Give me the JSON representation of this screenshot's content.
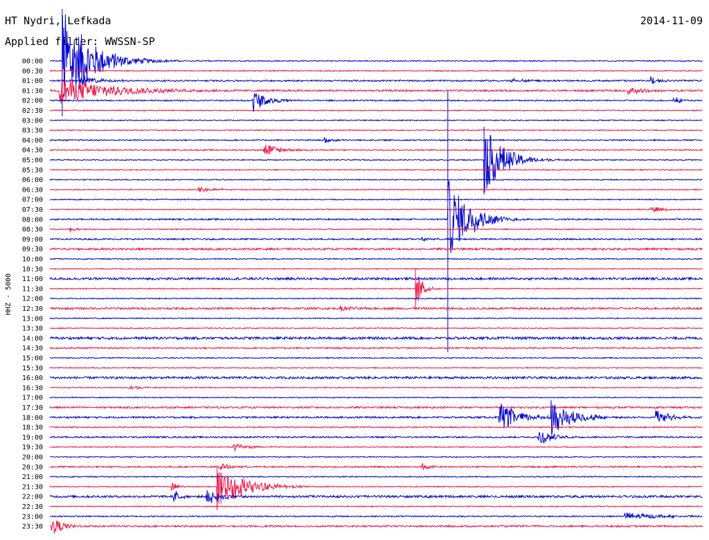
{
  "header": {
    "title": "HT Nydri, Lefkada",
    "filter": "Applied filter: WWSSN-SP",
    "date": "2014-11-09"
  },
  "chart_data": {
    "type": "line",
    "title": "HT Nydri, Lefkada",
    "subtitle": "Applied filter: WWSSN-SP",
    "date": "2014-11-09",
    "ylabel": "HHZ - 5000",
    "xlabel": "",
    "colors": [
      "#0000cc",
      "#ee1144"
    ],
    "x": [
      "00:00",
      "00:30",
      "01:00",
      "01:30",
      "02:00",
      "02:30",
      "03:00",
      "03:30",
      "04:00",
      "04:30",
      "05:00",
      "05:30",
      "06:00",
      "06:30",
      "07:00",
      "07:30",
      "08:00",
      "08:30",
      "09:00",
      "09:30",
      "10:00",
      "10:30",
      "11:00",
      "11:30",
      "12:00",
      "12:30",
      "13:00",
      "13:30",
      "14:00",
      "14:30",
      "15:00",
      "15:30",
      "16:00",
      "16:30",
      "17:00",
      "17:30",
      "18:00",
      "18:30",
      "19:00",
      "19:30",
      "20:00",
      "20:30",
      "21:00",
      "21:30",
      "22:00",
      "22:30",
      "23:00",
      "23:30"
    ],
    "row_noise": [
      0.8,
      0.8,
      1.2,
      1.4,
      1.0,
      0.8,
      0.8,
      0.8,
      1.0,
      1.0,
      0.8,
      0.8,
      0.8,
      0.8,
      0.8,
      0.8,
      1.2,
      0.8,
      1.2,
      1.6,
      0.8,
      0.8,
      1.8,
      0.8,
      0.8,
      1.6,
      0.8,
      0.8,
      2.0,
      1.2,
      0.8,
      0.8,
      1.8,
      0.8,
      0.8,
      1.4,
      1.4,
      1.0,
      1.2,
      0.8,
      0.8,
      1.2,
      0.8,
      0.8,
      1.8,
      0.8,
      1.0,
      1.4
    ],
    "events": [
      {
        "row": 0,
        "pos": 0.019,
        "amp": 80,
        "up": 75,
        "dur": 0.04
      },
      {
        "row": 2,
        "pos": 0.045,
        "amp": 8,
        "dur": 0.03
      },
      {
        "row": 3,
        "pos": 0.014,
        "amp": 20,
        "dur": 0.08
      },
      {
        "row": 4,
        "pos": 0.31,
        "amp": 18,
        "dur": 0.02
      },
      {
        "row": 2,
        "pos": 0.705,
        "amp": 4,
        "dur": 0.02
      },
      {
        "row": 2,
        "pos": 0.92,
        "amp": 6,
        "dur": 0.01
      },
      {
        "row": 3,
        "pos": 0.885,
        "amp": 6,
        "dur": 0.02
      },
      {
        "row": 4,
        "pos": 0.955,
        "amp": 7,
        "dur": 0.01
      },
      {
        "row": 9,
        "pos": 0.327,
        "amp": 12,
        "dur": 0.02
      },
      {
        "row": 8,
        "pos": 0.42,
        "amp": 5,
        "dur": 0.01
      },
      {
        "row": 10,
        "pos": 0.665,
        "amp": 50,
        "up": 48,
        "dur": 0.03
      },
      {
        "row": 13,
        "pos": 0.225,
        "amp": 6,
        "dur": 0.02
      },
      {
        "row": 15,
        "pos": 0.92,
        "amp": 5,
        "dur": 0.02
      },
      {
        "row": 16,
        "pos": 0.645,
        "amp": 8,
        "dur": 0.02
      },
      {
        "row": 16,
        "pos": 0.6095,
        "amp": 60,
        "up": 186,
        "down": 192,
        "dur": 0.03
      },
      {
        "row": 17,
        "pos": 0.03,
        "amp": 4,
        "dur": 0.01
      },
      {
        "row": 18,
        "pos": 0.57,
        "amp": 4,
        "dur": 0.01
      },
      {
        "row": 23,
        "pos": 0.56,
        "amp": 30,
        "up": 28,
        "down": 30,
        "dur": 0.01
      },
      {
        "row": 25,
        "pos": 0.445,
        "amp": 4,
        "dur": 0.02
      },
      {
        "row": 33,
        "pos": 0.12,
        "amp": 4,
        "dur": 0.02
      },
      {
        "row": 36,
        "pos": 0.688,
        "amp": 22,
        "dur": 0.03
      },
      {
        "row": 36,
        "pos": 0.767,
        "amp": 28,
        "dur": 0.03
      },
      {
        "row": 36,
        "pos": 0.927,
        "amp": 12,
        "dur": 0.02
      },
      {
        "row": 38,
        "pos": 0.748,
        "amp": 14,
        "dur": 0.02
      },
      {
        "row": 39,
        "pos": 0.28,
        "amp": 6,
        "dur": 0.02
      },
      {
        "row": 41,
        "pos": 0.26,
        "amp": 5,
        "dur": 0.02
      },
      {
        "row": 41,
        "pos": 0.57,
        "amp": 6,
        "dur": 0.01
      },
      {
        "row": 43,
        "pos": 0.185,
        "amp": 8,
        "dur": 0.01
      },
      {
        "row": 43,
        "pos": 0.256,
        "amp": 34,
        "up": 30,
        "down": 34,
        "dur": 0.04
      },
      {
        "row": 44,
        "pos": 0.19,
        "amp": 10,
        "dur": 0.01
      },
      {
        "row": 44,
        "pos": 0.24,
        "amp": 14,
        "dur": 0.02
      },
      {
        "row": 46,
        "pos": 0.88,
        "amp": 6,
        "dur": 0.05
      },
      {
        "row": 47,
        "pos": 0.002,
        "amp": 12,
        "dur": 0.02
      }
    ]
  }
}
